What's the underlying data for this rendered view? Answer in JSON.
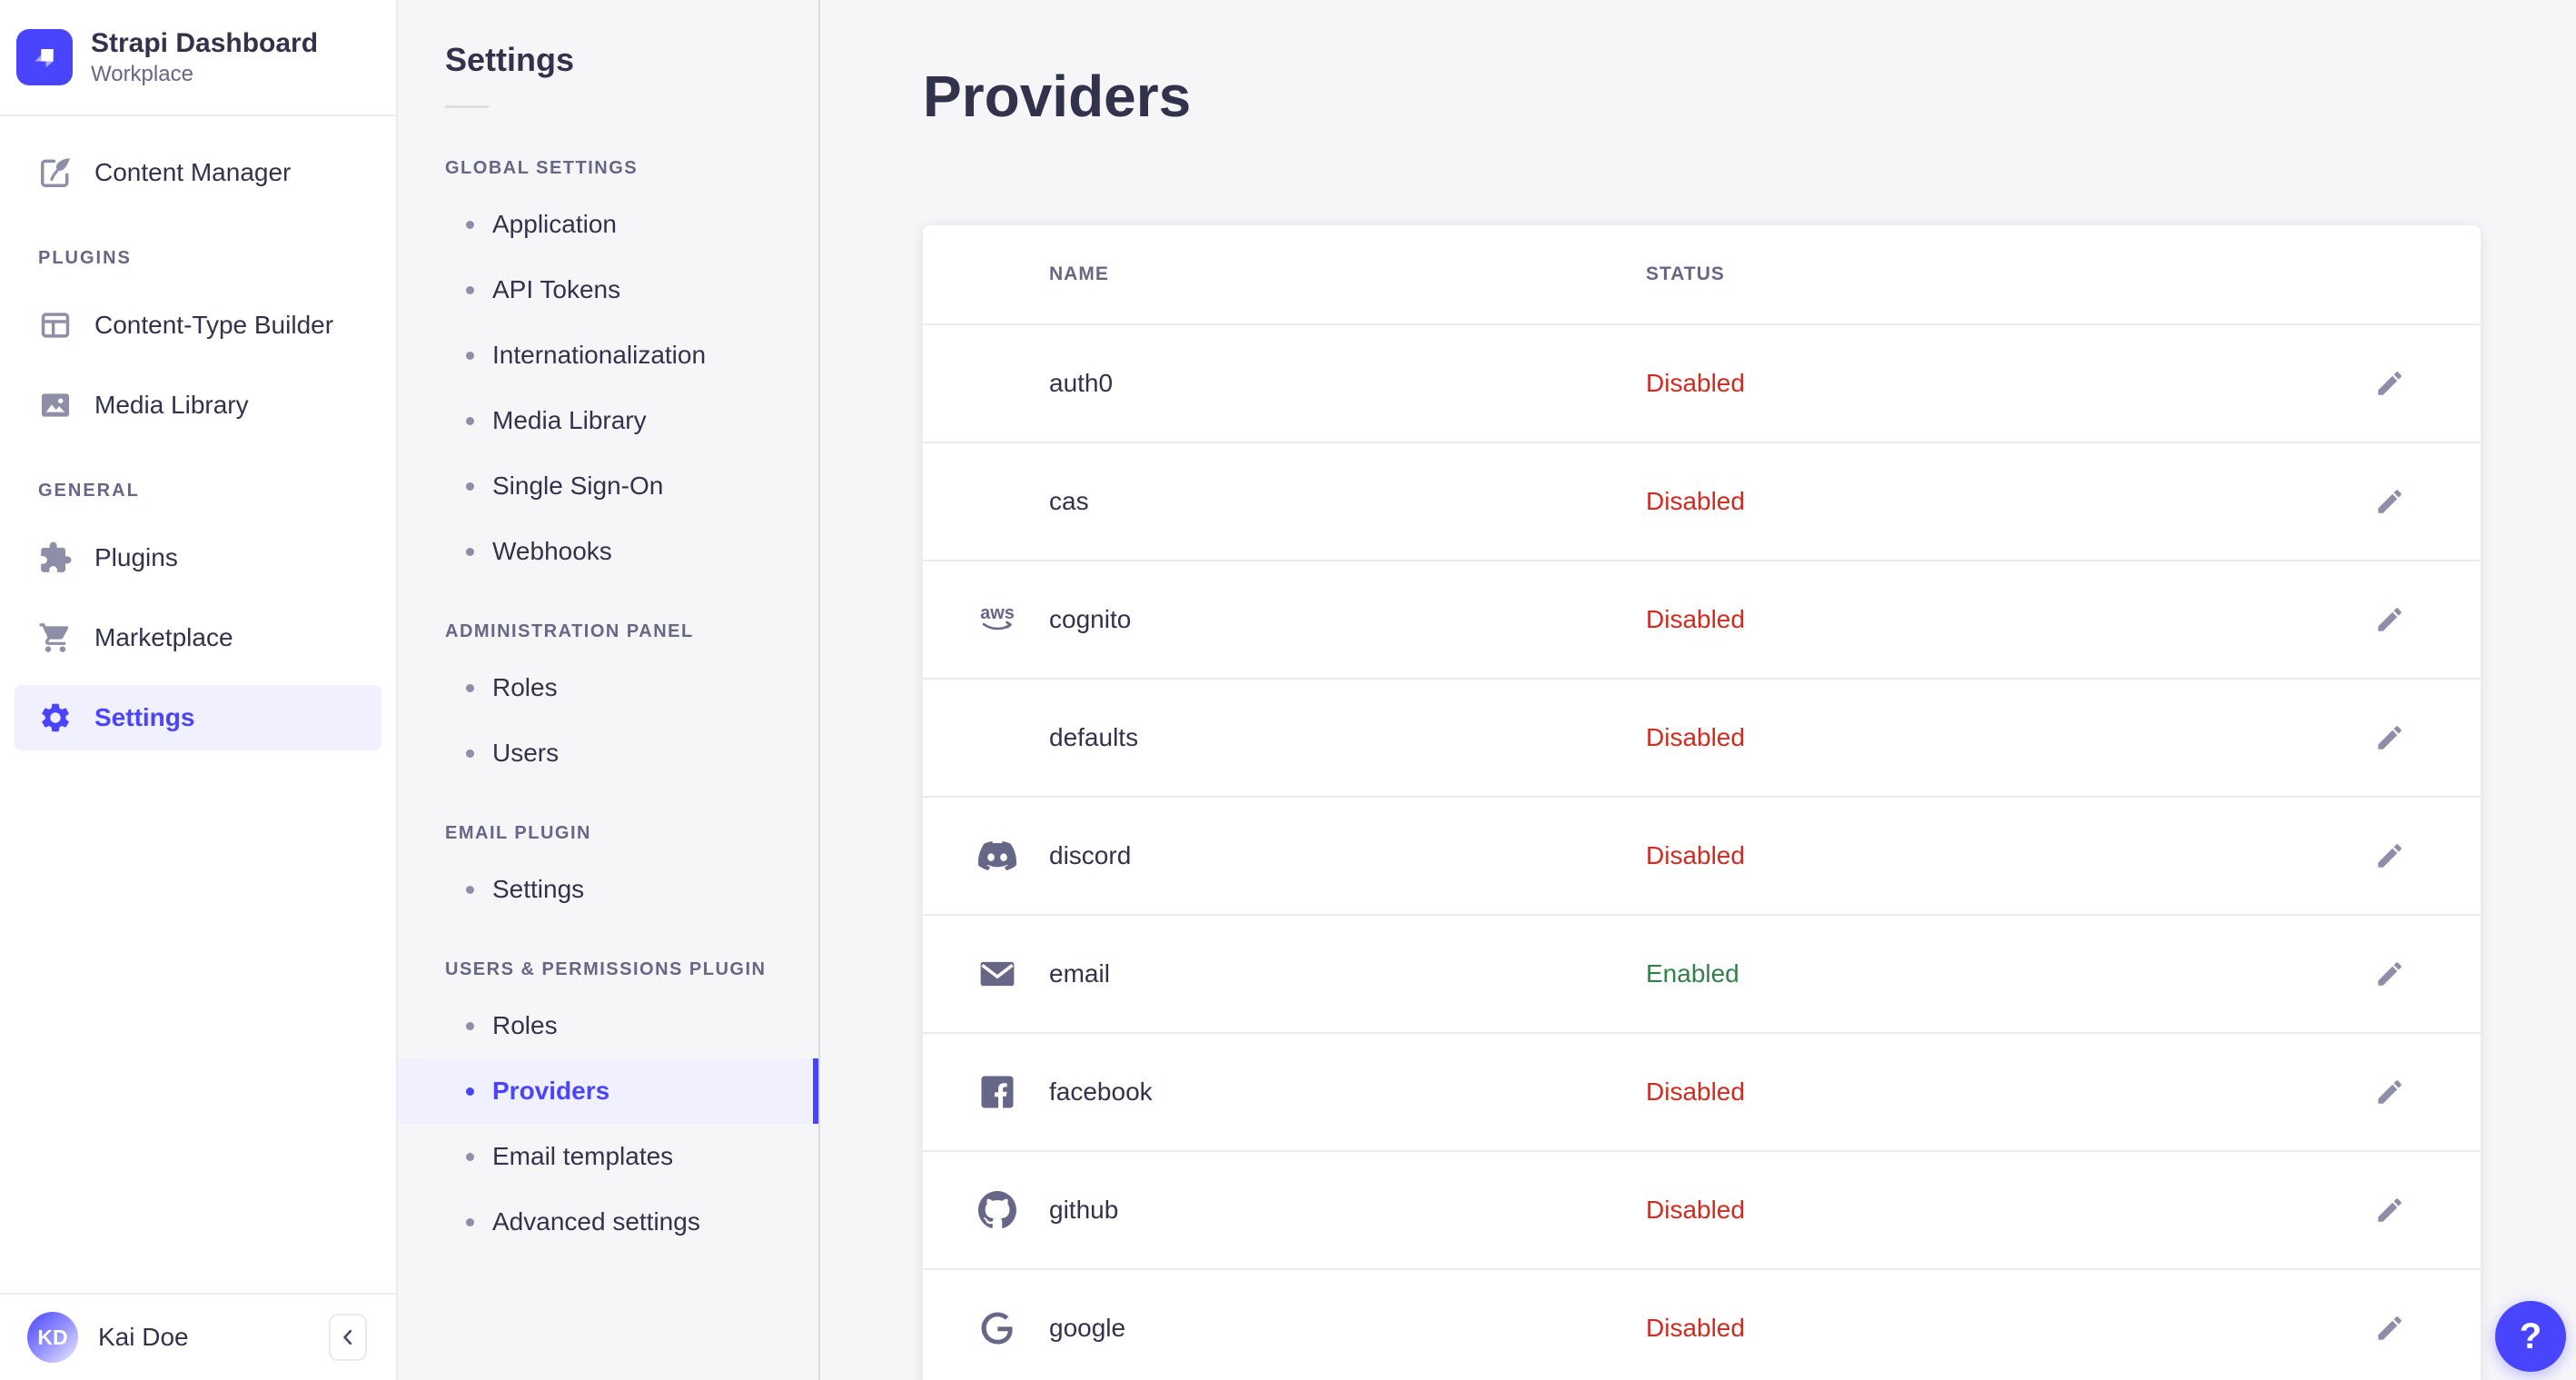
{
  "app": {
    "name": "Strapi Dashboard",
    "workspace": "Workplace"
  },
  "colors": {
    "primary": "#4945FF",
    "primary_light": "#F0F0FF",
    "danger": "#D02B20",
    "success": "#328048"
  },
  "main_nav": {
    "groups": [
      {
        "title": "",
        "items": [
          {
            "label": "Content Manager",
            "icon": "feather-pen",
            "active": false
          }
        ]
      },
      {
        "title": "PLUGINS",
        "items": [
          {
            "label": "Content-Type Builder",
            "icon": "layout-grid",
            "active": false
          },
          {
            "label": "Media Library",
            "icon": "image",
            "active": false
          }
        ]
      },
      {
        "title": "GENERAL",
        "items": [
          {
            "label": "Plugins",
            "icon": "puzzle",
            "active": false
          },
          {
            "label": "Marketplace",
            "icon": "cart",
            "active": false
          },
          {
            "label": "Settings",
            "icon": "gear",
            "active": true
          }
        ]
      }
    ],
    "user": {
      "name": "Kai Doe",
      "initials": "KD"
    }
  },
  "subnav": {
    "title": "Settings",
    "sections": [
      {
        "title": "GLOBAL SETTINGS",
        "items": [
          {
            "label": "Application"
          },
          {
            "label": "API Tokens"
          },
          {
            "label": "Internationalization"
          },
          {
            "label": "Media Library"
          },
          {
            "label": "Single Sign-On"
          },
          {
            "label": "Webhooks"
          }
        ]
      },
      {
        "title": "ADMINISTRATION PANEL",
        "items": [
          {
            "label": "Roles"
          },
          {
            "label": "Users"
          }
        ]
      },
      {
        "title": "EMAIL PLUGIN",
        "items": [
          {
            "label": "Settings"
          }
        ]
      },
      {
        "title": "USERS & PERMISSIONS PLUGIN",
        "items": [
          {
            "label": "Roles"
          },
          {
            "label": "Providers",
            "active": true
          },
          {
            "label": "Email templates"
          },
          {
            "label": "Advanced settings"
          }
        ]
      }
    ]
  },
  "main": {
    "title": "Providers",
    "table": {
      "columns": [
        "NAME",
        "STATUS"
      ],
      "rows": [
        {
          "name": "auth0",
          "icon": null,
          "status": "Disabled"
        },
        {
          "name": "cas",
          "icon": null,
          "status": "Disabled"
        },
        {
          "name": "cognito",
          "icon": "aws",
          "status": "Disabled"
        },
        {
          "name": "defaults",
          "icon": null,
          "status": "Disabled"
        },
        {
          "name": "discord",
          "icon": "discord",
          "status": "Disabled"
        },
        {
          "name": "email",
          "icon": "envelope",
          "status": "Enabled"
        },
        {
          "name": "facebook",
          "icon": "facebook",
          "status": "Disabled"
        },
        {
          "name": "github",
          "icon": "github",
          "status": "Disabled"
        },
        {
          "name": "google",
          "icon": "google",
          "status": "Disabled"
        }
      ]
    }
  },
  "help": {
    "label": "?"
  }
}
